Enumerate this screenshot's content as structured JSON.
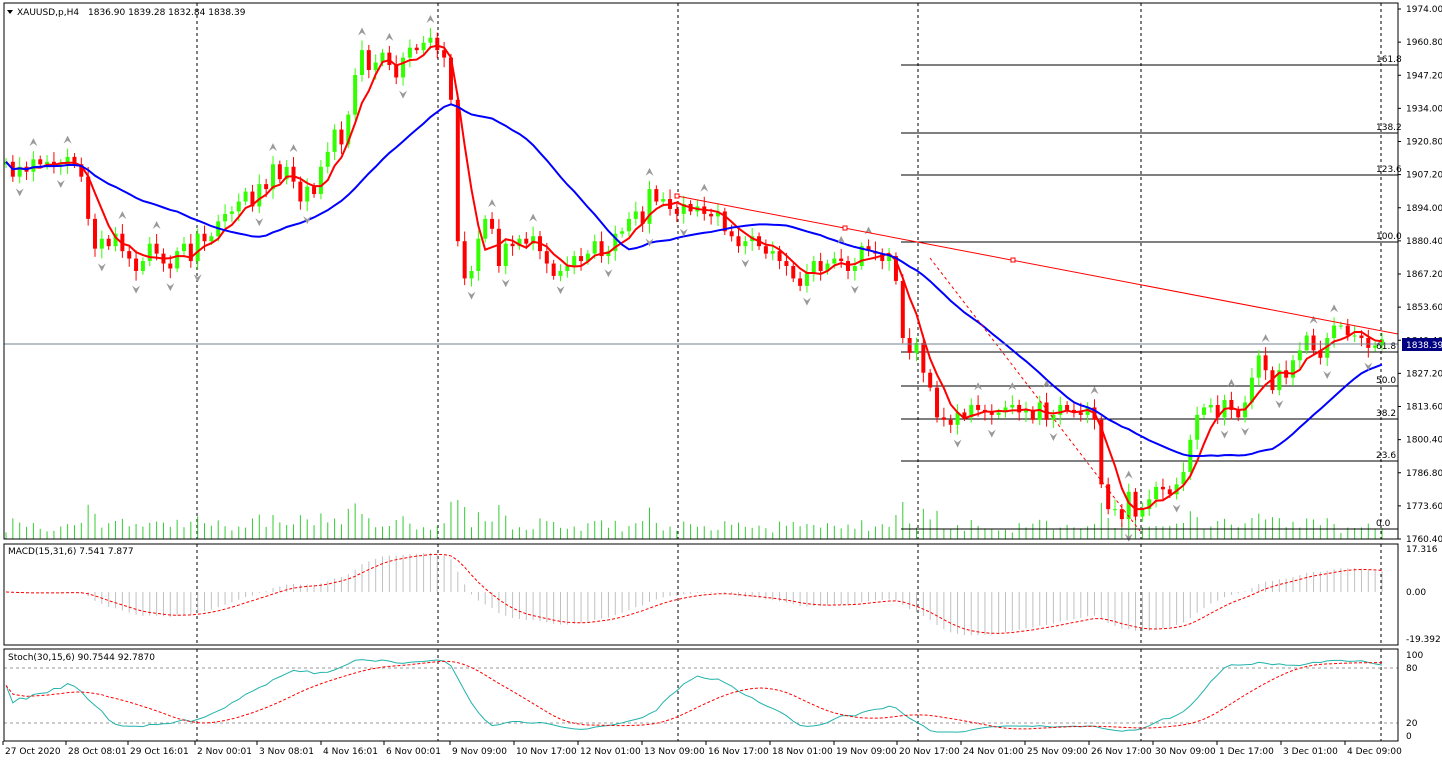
{
  "header": {
    "title": "XAUUSD,p,H4",
    "ohlc": "1836.90 1839.28 1832.84 1838.39",
    "current_price": "1838.39"
  },
  "colors": {
    "bull": "#33ff00",
    "bear": "#ff0000",
    "ma_fast": "#ff0000",
    "ma_slow": "#0000ff",
    "volume": "#33cc33",
    "macd_hist": "#c0c0c0",
    "macd_signal": "#ff0000",
    "stoch_main": "#20b2aa",
    "stoch_signal": "#ff0000",
    "price_tag_bg": "#000080"
  },
  "chart_data": [
    {
      "type": "candlestick",
      "ylim": [
        1760.4,
        1974.0
      ],
      "yticks": [
        "1974.00",
        "1960.80",
        "1947.20",
        "1934.00",
        "1920.80",
        "1907.20",
        "1894.00",
        "1880.40",
        "1867.20",
        "1853.60",
        "1840.40",
        "1827.20",
        "1813.60",
        "1800.40",
        "1786.80",
        "1773.60",
        "1760.40"
      ],
      "xticks": [
        "27 Oct 2020",
        "28 Oct 08:01",
        "29 Oct 16:01",
        "2 Nov 00:01",
        "3 Nov 08:01",
        "4 Nov 16:01",
        "6 Nov 00:01",
        "9 Nov 09:00",
        "10 Nov 17:00",
        "12 Nov 01:00",
        "13 Nov 09:00",
        "16 Nov 17:00",
        "18 Nov 01:00",
        "19 Nov 09:00",
        "20 Nov 17:00",
        "24 Nov 01:00",
        "25 Nov 09:00",
        "26 Nov 17:00",
        "30 Nov 09:00",
        "1 Dec 17:00",
        "3 Dec 01:00",
        "4 Dec 09:00"
      ],
      "close": [
        1910,
        1904,
        1908,
        1906,
        1911,
        1909,
        1910,
        1908,
        1909,
        1912,
        1909,
        1904,
        1887,
        1875,
        1879,
        1876,
        1881,
        1874,
        1871,
        1866,
        1870,
        1877,
        1873,
        1869,
        1867,
        1874,
        1877,
        1870,
        1881,
        1878,
        1880,
        1886,
        1889,
        1890,
        1894,
        1898,
        1892,
        1901,
        1899,
        1909,
        1903,
        1908,
        1902,
        1894,
        1900,
        1897,
        1908,
        1914,
        1923,
        1917,
        1929,
        1945,
        1955,
        1947,
        1950,
        1954,
        1949,
        1944,
        1952,
        1956,
        1955,
        1958,
        1960,
        1955,
        1952,
        1935,
        1878,
        1863,
        1866,
        1879,
        1887,
        1883,
        1868,
        1877,
        1876,
        1879,
        1877,
        1880,
        1874,
        1869,
        1864,
        1866,
        1868,
        1872,
        1870,
        1873,
        1878,
        1872,
        1874,
        1881,
        1882,
        1887,
        1890,
        1885,
        1899,
        1894,
        1895,
        1891,
        1889,
        1893,
        1890,
        1892,
        1889,
        1888,
        1890,
        1882,
        1880,
        1876,
        1878,
        1880,
        1876,
        1873,
        1874,
        1870,
        1868,
        1863,
        1860,
        1865,
        1870,
        1866,
        1869,
        1871,
        1870,
        1866,
        1868,
        1876,
        1874,
        1873,
        1870,
        1872,
        1862,
        1839,
        1833,
        1837,
        1825,
        1819,
        1807,
        1806,
        1804,
        1809,
        1807,
        1812,
        1810,
        1809,
        1808,
        1809,
        1811,
        1812,
        1809,
        1810,
        1806,
        1813,
        1806,
        1808,
        1812,
        1810,
        1809,
        1808,
        1811,
        1806,
        1780,
        1770,
        1770,
        1766,
        1777,
        1767,
        1770,
        1774,
        1779,
        1778,
        1776,
        1780,
        1785,
        1798,
        1808,
        1811,
        1812,
        1807,
        1814,
        1810,
        1807,
        1813,
        1823,
        1832,
        1826,
        1818,
        1826,
        1823,
        1830,
        1834,
        1840,
        1834,
        1831,
        1839,
        1844,
        1844,
        1840,
        1840,
        1839,
        1835,
        1836,
        1838.39
      ]
    },
    {
      "type": "line",
      "ylim": [
        -19.392,
        17.316
      ],
      "yticks": [
        "17.316",
        "0.00",
        "-19.392"
      ],
      "title": "MACD(15,31,6) 7.541 7.877",
      "series": [
        {
          "name": "MACD"
        },
        {
          "name": "Signal"
        }
      ]
    },
    {
      "type": "line",
      "ylim": [
        0,
        100
      ],
      "yticks": [
        "100",
        "80",
        "20",
        "0"
      ],
      "title": "Stoch(30,15,6) 90.7544 92.7870",
      "series": [
        {
          "name": "Main"
        },
        {
          "name": "Signal"
        }
      ]
    }
  ],
  "fibonacci": {
    "levels": [
      "161.8",
      "138.2",
      "123.6",
      "100.0",
      "61.8",
      "50.0",
      "38.2",
      "23.6",
      "0.0"
    ]
  }
}
